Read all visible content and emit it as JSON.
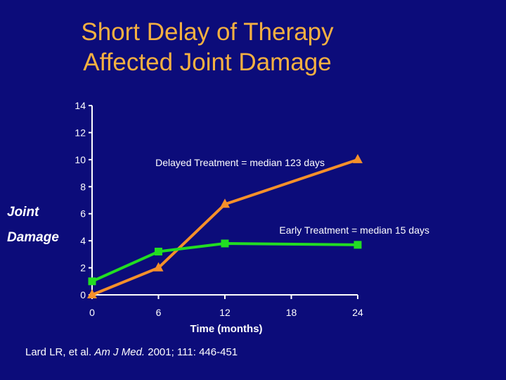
{
  "slide": {
    "title_line1": "Short Delay of Therapy",
    "title_line2": "Affected Joint Damage",
    "citation_authors": "Lard LR, et al.",
    "citation_journal": "Am J Med.",
    "citation_details": "2001; 111: 446-451"
  },
  "colors": {
    "background": "#0c0c7a",
    "title": "#f5b041",
    "delayed": "#f5902a",
    "early": "#22dd22",
    "text": "#ffffff"
  },
  "chart_data": {
    "type": "line",
    "xlabel": "Time (months)",
    "ylabel_line1": "Joint",
    "ylabel_line2": "Damage",
    "x_ticks": [
      0,
      6,
      12,
      18,
      24
    ],
    "y_ticks": [
      0,
      2,
      4,
      6,
      8,
      10,
      12,
      14
    ],
    "xlim": [
      0,
      24
    ],
    "ylim": [
      0,
      14
    ],
    "grid": false,
    "series": [
      {
        "name": "Delayed Treatment = median 123 days",
        "marker": "triangle",
        "color": "#f5902a",
        "x": [
          0,
          6,
          12,
          24
        ],
        "y": [
          0,
          2,
          6.7,
          10
        ]
      },
      {
        "name": "Early Treatment = median 15 days",
        "marker": "square",
        "color": "#22dd22",
        "x": [
          0,
          6,
          12,
          24
        ],
        "y": [
          1,
          3.2,
          3.8,
          3.7
        ]
      }
    ]
  }
}
